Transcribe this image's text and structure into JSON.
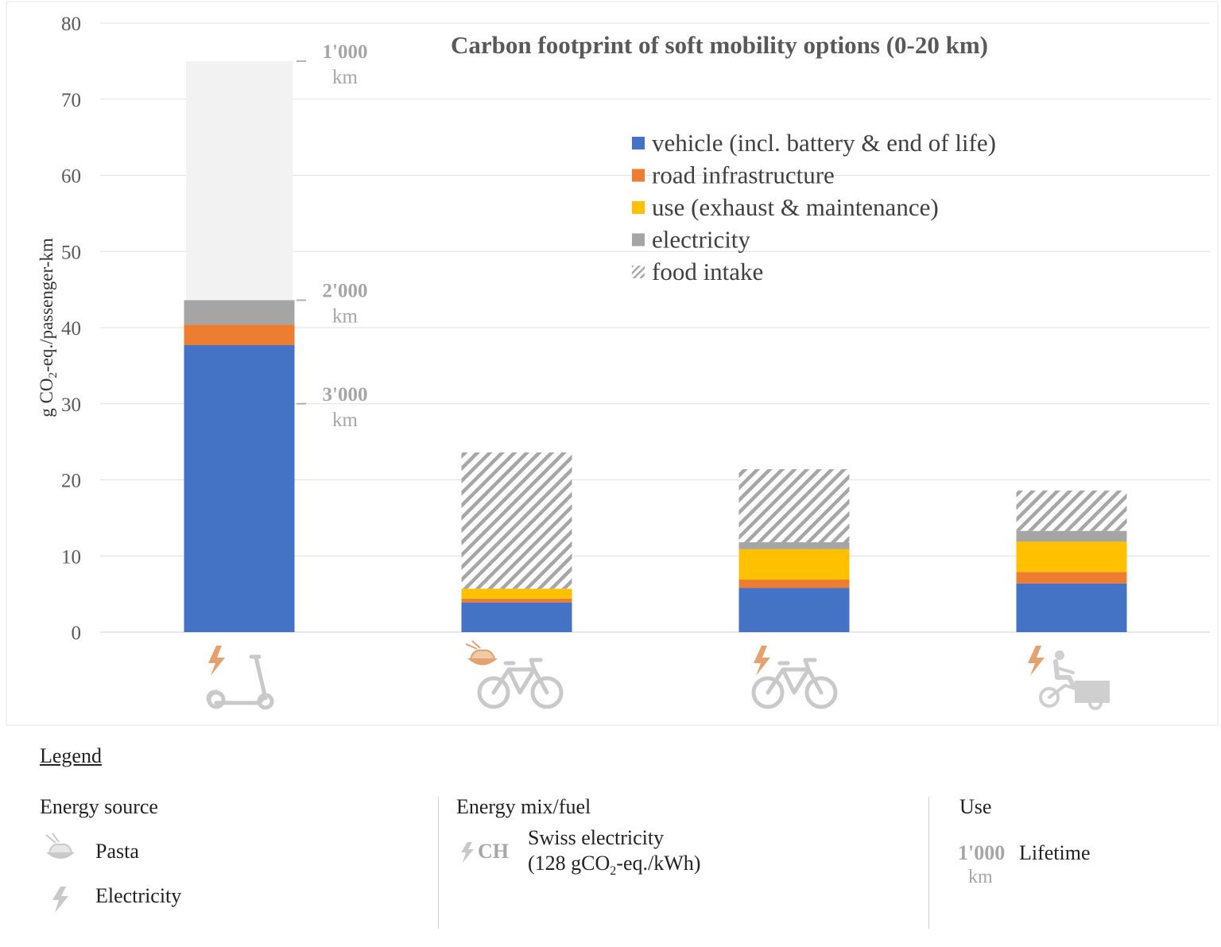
{
  "chart_data": {
    "type": "bar",
    "stacked": true,
    "title": "Carbon footprint of soft mobility options (0-20 km)",
    "ylabel": "g CO2-eq./passenger-km",
    "ylim": [
      0,
      80
    ],
    "yticks": [
      0,
      10,
      20,
      30,
      40,
      50,
      60,
      70,
      80
    ],
    "grid": true,
    "legend_position": "top-right",
    "categories": [
      "e-scooter",
      "bicycle",
      "e-bike",
      "e-cargo bike"
    ],
    "category_icons": [
      "electricity-icon + e-scooter-icon",
      "pasta-icon + bicycle-icon",
      "electricity-icon + bicycle-icon",
      "electricity-icon + cargo-bike-icon"
    ],
    "series": [
      {
        "name": "vehicle (incl. battery & end of life)",
        "color": "#4472c4",
        "pattern": "solid",
        "values": [
          37.7,
          3.9,
          5.8,
          6.4
        ]
      },
      {
        "name": "road infrastructure",
        "color": "#ed7d31",
        "pattern": "solid",
        "values": [
          2.7,
          0.5,
          1.1,
          1.5
        ]
      },
      {
        "name": "use (exhaust & maintenance)",
        "color": "#ffc000",
        "pattern": "solid",
        "values": [
          0,
          1.3,
          4.0,
          4.0
        ]
      },
      {
        "name": "electricity",
        "color": "#a5a5a5",
        "pattern": "solid",
        "values": [
          3.2,
          0,
          0.9,
          1.4
        ]
      },
      {
        "name": "food intake",
        "color": "#a5a5a5",
        "pattern": "hatched",
        "values": [
          0,
          17.9,
          9.6,
          5.3
        ]
      }
    ],
    "lifetime_overlay": {
      "category": "e-scooter",
      "color": "#f2f2f2",
      "top_value": 75,
      "markers": [
        {
          "value": 75,
          "label_top": "1'000",
          "label_bottom": "km"
        },
        {
          "value": 43.6,
          "label_top": "2'000",
          "label_bottom": "km"
        },
        {
          "value": 30,
          "label_top": "3'000",
          "label_bottom": "km"
        }
      ]
    }
  },
  "legend": {
    "heading": "Legend",
    "energy_source": {
      "title": "Energy source",
      "items": [
        {
          "icon": "pasta-icon",
          "label": "Pasta"
        },
        {
          "icon": "electricity-icon",
          "label": "Electricity"
        }
      ]
    },
    "energy_mix": {
      "title": "Energy mix/fuel",
      "code": "CH",
      "icon": "electricity-icon",
      "line1": "Swiss electricity",
      "line2_pre": "(128 gCO",
      "line2_sub": "2",
      "line2_post": "-eq./kWh)"
    },
    "use": {
      "title": "Use",
      "value_top": "1'000",
      "value_bottom": "km",
      "label": "Lifetime"
    }
  }
}
